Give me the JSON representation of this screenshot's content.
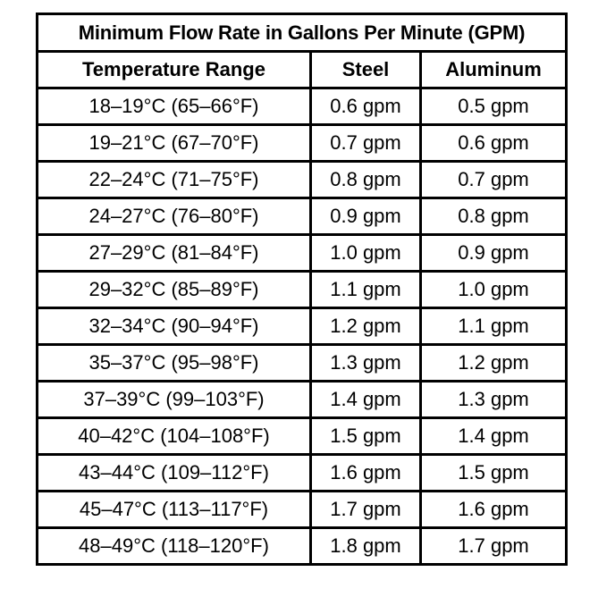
{
  "table": {
    "title": "Minimum Flow Rate in Gallons Per Minute (GPM)",
    "headers": {
      "temperature": "Temperature Range",
      "steel": "Steel",
      "aluminum": "Aluminum"
    },
    "rows": [
      {
        "temperature": "18–19°C (65–66°F)",
        "steel": "0.6 gpm",
        "aluminum": "0.5 gpm"
      },
      {
        "temperature": "19–21°C (67–70°F)",
        "steel": "0.7 gpm",
        "aluminum": "0.6 gpm"
      },
      {
        "temperature": "22–24°C (71–75°F)",
        "steel": "0.8 gpm",
        "aluminum": "0.7 gpm"
      },
      {
        "temperature": "24–27°C (76–80°F)",
        "steel": "0.9 gpm",
        "aluminum": "0.8 gpm"
      },
      {
        "temperature": "27–29°C (81–84°F)",
        "steel": "1.0 gpm",
        "aluminum": "0.9 gpm"
      },
      {
        "temperature": "29–32°C (85–89°F)",
        "steel": "1.1 gpm",
        "aluminum": "1.0 gpm"
      },
      {
        "temperature": "32–34°C (90–94°F)",
        "steel": "1.2 gpm",
        "aluminum": "1.1 gpm"
      },
      {
        "temperature": "35–37°C (95–98°F)",
        "steel": "1.3 gpm",
        "aluminum": "1.2 gpm"
      },
      {
        "temperature": "37–39°C (99–103°F)",
        "steel": "1.4 gpm",
        "aluminum": "1.3 gpm"
      },
      {
        "temperature": "40–42°C (104–108°F)",
        "steel": "1.5 gpm",
        "aluminum": "1.4 gpm"
      },
      {
        "temperature": "43–44°C (109–112°F)",
        "steel": "1.6 gpm",
        "aluminum": "1.5 gpm"
      },
      {
        "temperature": "45–47°C (113–117°F)",
        "steel": "1.7 gpm",
        "aluminum": "1.6 gpm"
      },
      {
        "temperature": "48–49°C (118–120°F)",
        "steel": "1.8 gpm",
        "aluminum": "1.7 gpm"
      }
    ]
  }
}
